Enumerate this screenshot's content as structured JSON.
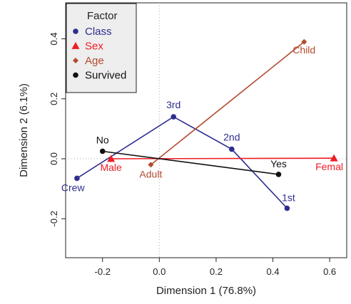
{
  "chart_data": {
    "type": "scatter",
    "xlabel": "Dimension 1 (76.8%)",
    "ylabel": "Dimension 2 (6.1%)",
    "xlim": [
      -0.33,
      0.66
    ],
    "ylim": [
      -0.33,
      0.52
    ],
    "xticks": [
      "-0.2",
      "0.0",
      "0.2",
      "0.4",
      "0.6"
    ],
    "yticks": [
      "-0.2",
      "0.0",
      "0.2",
      "0.4"
    ],
    "xtick_values": [
      -0.2,
      0.0,
      0.2,
      0.4,
      0.6
    ],
    "ytick_values": [
      -0.2,
      0.0,
      0.2,
      0.4
    ],
    "reference_lines": {
      "x": 0,
      "y": 0,
      "style": "dotted"
    },
    "legend": {
      "title": "Factor",
      "position": "top-left",
      "entries": [
        {
          "name": "Class",
          "color": "#2e2e8f",
          "marker": "circle"
        },
        {
          "name": "Sex",
          "color": "#ee1c24",
          "marker": "triangle"
        },
        {
          "name": "Age",
          "color": "#b34a2e",
          "marker": "diamond"
        },
        {
          "name": "Survived",
          "color": "#111111",
          "marker": "circle"
        }
      ]
    },
    "series": [
      {
        "name": "Class",
        "color": "#2e2e8f",
        "marker": "circle",
        "points": [
          {
            "label": "Crew",
            "x": -0.29,
            "y": -0.065
          },
          {
            "label": "3rd",
            "x": 0.05,
            "y": 0.14
          },
          {
            "label": "2nd",
            "x": 0.255,
            "y": 0.032
          },
          {
            "label": "1st",
            "x": 0.45,
            "y": -0.165
          }
        ]
      },
      {
        "name": "Sex",
        "color": "#ee1c24",
        "marker": "triangle",
        "points": [
          {
            "label": "Male",
            "x": -0.17,
            "y": 0.0
          },
          {
            "label": "Femal",
            "x": 0.615,
            "y": 0.002
          }
        ]
      },
      {
        "name": "Age",
        "color": "#b34a2e",
        "marker": "diamond",
        "points": [
          {
            "label": "Adult",
            "x": -0.03,
            "y": -0.02
          },
          {
            "label": "Child",
            "x": 0.51,
            "y": 0.39
          }
        ]
      },
      {
        "name": "Survived",
        "color": "#111111",
        "marker": "circle",
        "points": [
          {
            "label": "No",
            "x": -0.2,
            "y": 0.025
          },
          {
            "label": "Yes",
            "x": 0.42,
            "y": -0.052
          }
        ]
      }
    ]
  }
}
